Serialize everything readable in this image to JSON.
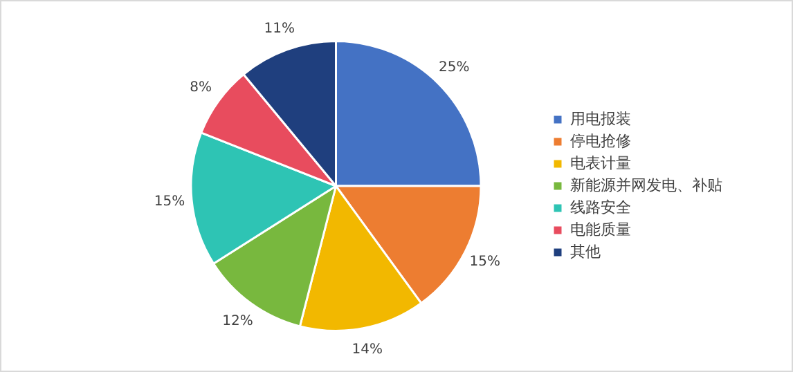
{
  "chart_data": {
    "type": "pie",
    "categories": [
      "用电报装",
      "停电抢修",
      "电表计量",
      "新能源并网发电、补贴",
      "线路安全",
      "电能质量",
      "其他"
    ],
    "values": [
      25,
      15,
      14,
      12,
      15,
      8,
      11
    ],
    "colors": [
      "#4472c4",
      "#ed7d31",
      "#f2b800",
      "#78b83e",
      "#2ec4b4",
      "#e84c5e",
      "#1f3f7e"
    ],
    "value_labels": [
      "25%",
      "15%",
      "14%",
      "12%",
      "15%",
      "8%",
      "11%"
    ],
    "legend": "right"
  }
}
